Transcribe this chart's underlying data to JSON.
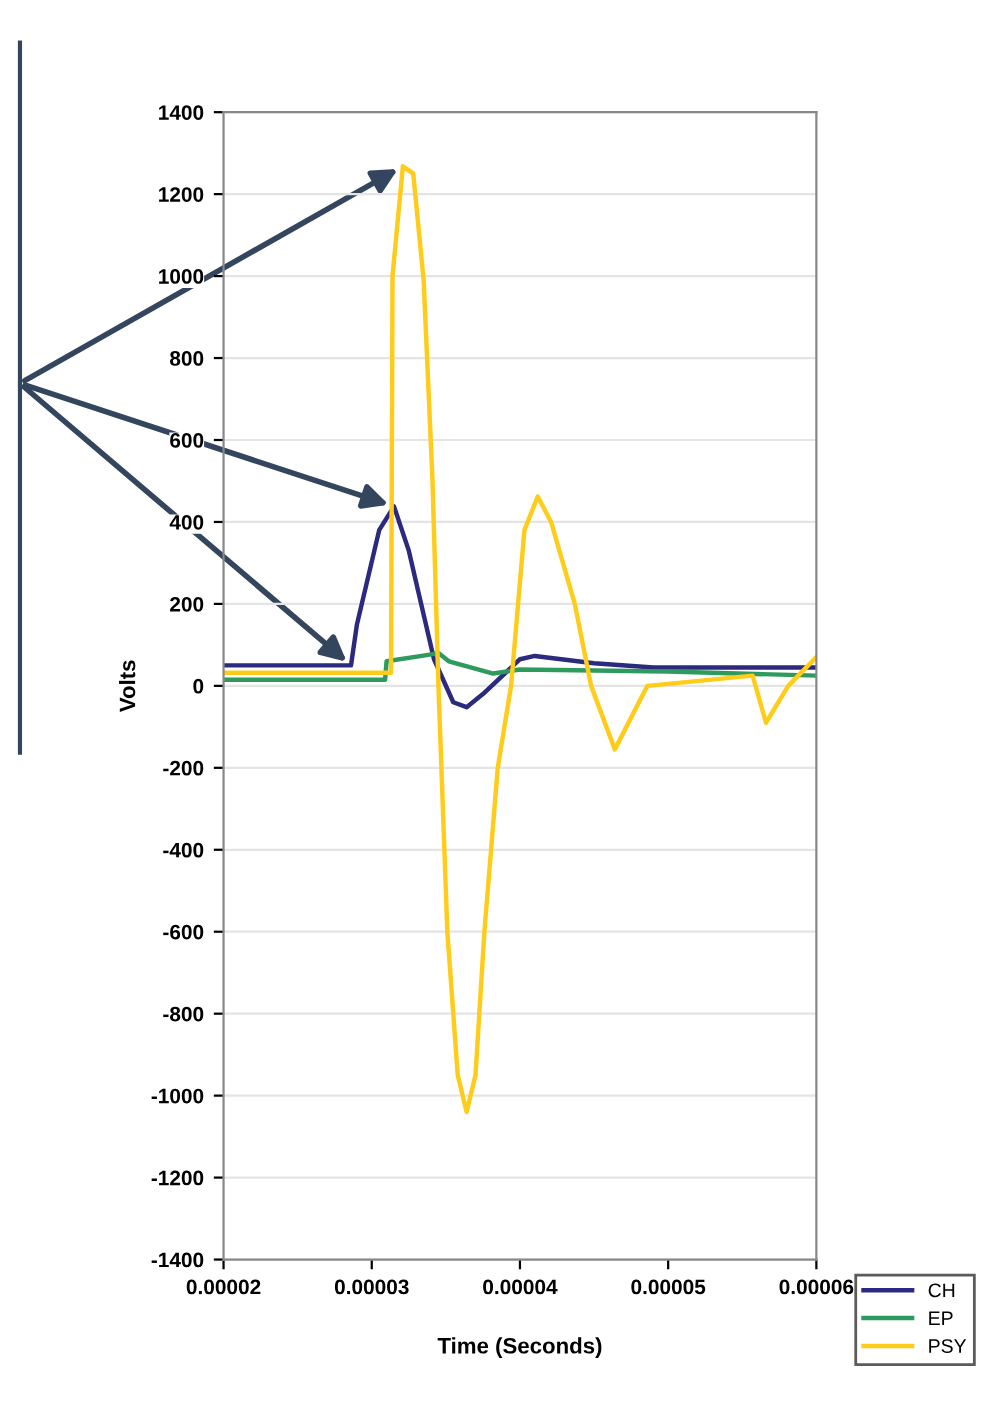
{
  "chart_data": {
    "type": "line",
    "xlabel": "Time (Seconds)",
    "ylabel": "Volts",
    "xlim": [
      2e-05,
      6e-05
    ],
    "xticks": [
      {
        "value": 2e-05,
        "label": "0.00002"
      },
      {
        "value": 3e-05,
        "label": "0.00003"
      },
      {
        "value": 4e-05,
        "label": "0.00004"
      },
      {
        "value": 5e-05,
        "label": "0.00005"
      },
      {
        "value": 6e-05,
        "label": "0.00006"
      }
    ],
    "ylim": [
      -1400,
      1400
    ],
    "yticks": [
      -1400,
      -1200,
      -1000,
      -800,
      -600,
      -400,
      -200,
      0,
      200,
      400,
      600,
      800,
      1000,
      1200,
      1400
    ],
    "grid": "y",
    "legend": "bottom right",
    "marker": "none",
    "line_style": "solid",
    "series": [
      {
        "name": "CH",
        "color": "#2b2a7e",
        "x": [
          2e-05,
          2.86e-05,
          2.9e-05,
          3.05e-05,
          3.15e-05,
          3.25e-05,
          3.42e-05,
          3.55e-05,
          3.64e-05,
          3.75e-05,
          4e-05,
          4.1e-05,
          4.5e-05,
          4.9e-05,
          6e-05
        ],
        "values": [
          50,
          50,
          150,
          380,
          438,
          330,
          65,
          -40,
          -52,
          -20,
          65,
          73,
          55,
          45,
          45
        ]
      },
      {
        "name": "EP",
        "color": "#2e9a5e",
        "x": [
          2e-05,
          3e-05,
          3.09e-05,
          3.1e-05,
          3.37e-05,
          3.45e-05,
          3.52e-05,
          3.82e-05,
          4e-05,
          5e-05,
          6e-05
        ],
        "values": [
          15,
          15,
          15,
          60,
          75,
          80,
          60,
          30,
          40,
          35,
          25
        ]
      },
      {
        "name": "PSY",
        "color": "#ffcc1a",
        "x": [
          2e-05,
          3.1e-05,
          3.13e-05,
          3.14e-05,
          3.21e-05,
          3.28e-05,
          3.35e-05,
          3.41e-05,
          3.45e-05,
          3.51e-05,
          3.58e-05,
          3.64e-05,
          3.7e-05,
          3.76e-05,
          3.85e-05,
          3.94e-05,
          4.03e-05,
          4.12e-05,
          4.21e-05,
          4.37e-05,
          4.48e-05,
          4.64e-05,
          4.86e-05,
          5.57e-05,
          5.66e-05,
          5.81e-05,
          6e-05
        ],
        "values": [
          32,
          32,
          32,
          1000,
          1268,
          1250,
          990,
          500,
          0,
          -600,
          -950,
          -1040,
          -950,
          -600,
          -200,
          0,
          380,
          462,
          400,
          200,
          0,
          -155,
          0,
          25,
          -90,
          0,
          70
        ]
      }
    ]
  }
}
